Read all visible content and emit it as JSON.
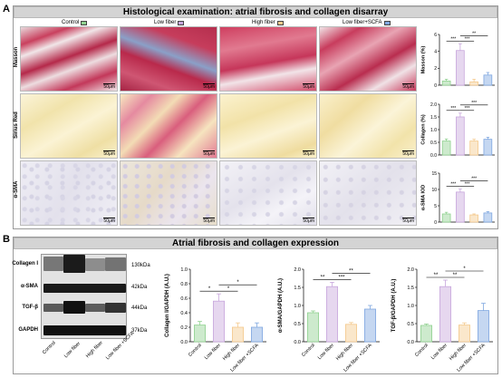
{
  "panel_a": {
    "letter": "A",
    "title": "Histological examination: atrial fibrosis and collagen disarray",
    "groups": [
      {
        "name": "Control",
        "color": "#8fd18f"
      },
      {
        "name": "Low fiber",
        "color": "#c7a6dc"
      },
      {
        "name": "High fiber",
        "color": "#f4c98c"
      },
      {
        "name": "Low fiber+SCFA",
        "color": "#7fa7e0"
      }
    ],
    "rows": [
      "Masson",
      "Sirius Red",
      "α-SMA"
    ],
    "scale_bar": "50μm"
  },
  "panel_b": {
    "letter": "B",
    "title": "Atrial fibrosis and collagen expression",
    "blot_labels": [
      "Collagen I",
      "α-SMA",
      "TGF-β",
      "GAPDH"
    ],
    "blot_kda": [
      "130kDa",
      "42kDa",
      "44kDa",
      "37kDa"
    ],
    "lanes": [
      "Control",
      "Low fiber",
      "High fiber",
      "Low fiber +SCFA"
    ]
  },
  "chart_data": [
    {
      "type": "bar",
      "ylabel": "Masson (%)",
      "categories": [
        "Control",
        "Low fiber",
        "High fiber",
        "Low fiber+SCFA"
      ],
      "values": [
        0.5,
        4.1,
        0.4,
        1.2
      ],
      "errors": [
        0.2,
        0.8,
        0.3,
        0.3
      ],
      "ylim": [
        0,
        6
      ],
      "yticks": [
        "0",
        "2",
        "4",
        "6"
      ],
      "significance": [
        "***",
        "***",
        "**"
      ]
    },
    {
      "type": "bar",
      "ylabel": "Collagen (%)",
      "categories": [
        "Control",
        "Low fiber",
        "High fiber",
        "Low fiber+SCFA"
      ],
      "values": [
        0.55,
        1.5,
        0.55,
        0.62
      ],
      "errors": [
        0.08,
        0.15,
        0.07,
        0.08
      ],
      "ylim": [
        0,
        2
      ],
      "yticks": [
        "0.0",
        "0.5",
        "1.0",
        "1.5",
        "2.0"
      ],
      "significance": [
        "***",
        "***",
        "***"
      ]
    },
    {
      "type": "bar",
      "ylabel": "α-SMA IOD",
      "categories": [
        "Control",
        "Low fiber",
        "High fiber",
        "Low fiber+SCFA"
      ],
      "values": [
        2.5,
        9.2,
        2.2,
        2.8
      ],
      "errors": [
        0.5,
        0.9,
        0.3,
        0.4
      ],
      "ylim": [
        0,
        15
      ],
      "yticks": [
        "0",
        "5",
        "10",
        "15"
      ],
      "significance": [
        "***",
        "***",
        "***"
      ]
    },
    {
      "type": "bar",
      "ylabel": "Collagen I/GAPDH (A.U.)",
      "categories": [
        "Control",
        "Low fiber",
        "High fiber",
        "Low fiber +SCFA"
      ],
      "values": [
        0.23,
        0.56,
        0.2,
        0.2
      ],
      "errors": [
        0.05,
        0.1,
        0.06,
        0.06
      ],
      "ylim": [
        0,
        1.0
      ],
      "yticks": [
        "0.0",
        "0.2",
        "0.4",
        "0.6",
        "0.8",
        "1.0"
      ],
      "significance": [
        "*",
        "*",
        "*"
      ]
    },
    {
      "type": "bar",
      "ylabel": "α-SMA/GAPDH (A.U.)",
      "categories": [
        "Control",
        "Low fiber",
        "High fiber",
        "Low fiber +SCFA"
      ],
      "values": [
        0.8,
        1.52,
        0.48,
        0.9
      ],
      "errors": [
        0.05,
        0.12,
        0.05,
        0.1
      ],
      "ylim": [
        0,
        2.0
      ],
      "yticks": [
        "0.0",
        "0.5",
        "1.0",
        "1.5",
        "2.0"
      ],
      "significance": [
        "**",
        "***",
        "**"
      ]
    },
    {
      "type": "bar",
      "ylabel": "TGF-β/GAPDH (A.U.)",
      "categories": [
        "Control",
        "Low fiber",
        "High fiber",
        "Low fiber +SCFA"
      ],
      "values": [
        0.45,
        1.52,
        0.46,
        0.86
      ],
      "errors": [
        0.04,
        0.18,
        0.06,
        0.2
      ],
      "ylim": [
        0,
        2.0
      ],
      "yticks": [
        "0.0",
        "0.5",
        "1.0",
        "1.5",
        "2.0"
      ],
      "significance": [
        "**",
        "**",
        "*"
      ]
    }
  ]
}
